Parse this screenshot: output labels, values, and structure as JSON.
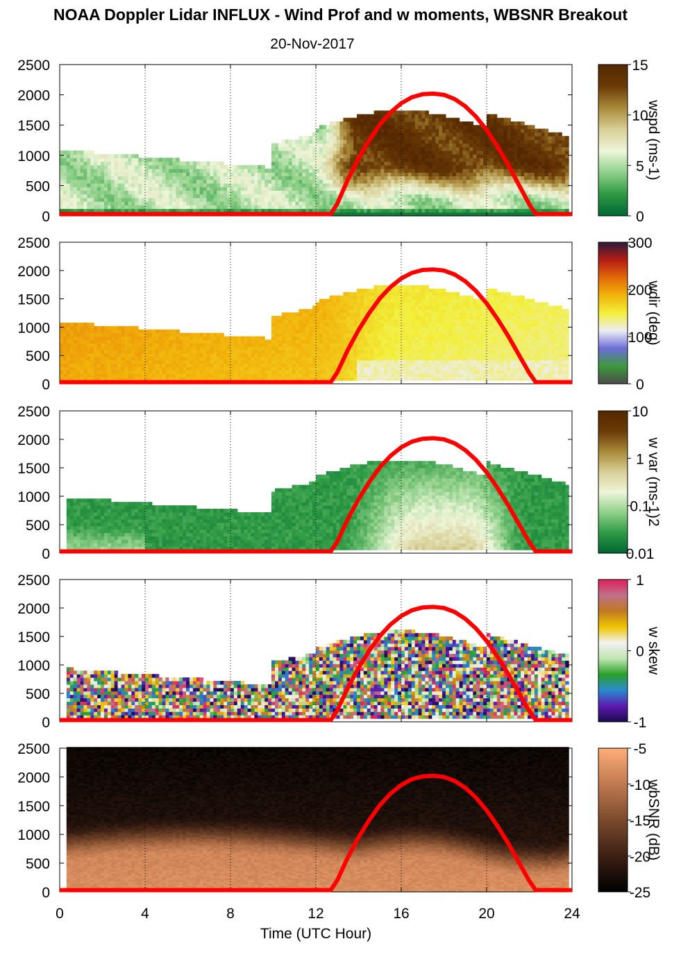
{
  "title": "NOAA Doppler Lidar INFLUX - Wind Prof and w moments, WBSNR Breakout",
  "subtitle": "20-Nov-2017",
  "xlabel": "Time (UTC Hour)",
  "chart_data": [
    {
      "type": "heatmap",
      "name": "wspd",
      "colorbar_label": "wspd (ms-1)",
      "colorbar_ticks": [
        "0",
        "5",
        "10",
        "15"
      ],
      "colormap": [
        "#006633",
        "#2e9a44",
        "#8fd08a",
        "#eef6da",
        "#d8cf96",
        "#a98a3a",
        "#6a3a06",
        "#542700"
      ],
      "xlim": [
        0,
        24
      ],
      "ylim": [
        0,
        2500
      ],
      "xticks": [
        0,
        4,
        8,
        12,
        16,
        20,
        24
      ],
      "yticks": [
        0,
        500,
        1000,
        1500,
        2000,
        2500
      ]
    },
    {
      "type": "heatmap",
      "name": "wdir",
      "colorbar_label": "wdir (deg)",
      "colorbar_ticks": [
        "0",
        "100",
        "200",
        "300"
      ],
      "colormap": [
        "#4a4a4a",
        "#3c9a3c",
        "#6d6dd9",
        "#ededf5",
        "#f2ef3a",
        "#f2b40a",
        "#e26a0a",
        "#b41c14",
        "#2a1a3c"
      ],
      "xlim": [
        0,
        24
      ],
      "ylim": [
        0,
        2500
      ],
      "xticks": [
        0,
        4,
        8,
        12,
        16,
        20,
        24
      ],
      "yticks": [
        0,
        500,
        1000,
        1500,
        2000,
        2500
      ]
    },
    {
      "type": "heatmap",
      "name": "w var",
      "colorbar_label": "w var (ms-1)2",
      "colorbar_ticks": [
        "0.01",
        "0.1",
        "1",
        "10"
      ],
      "colormap": [
        "#006633",
        "#2e9a44",
        "#8fd08a",
        "#eef6da",
        "#d8cf96",
        "#a98a3a",
        "#6a3a06",
        "#542700"
      ],
      "xlim": [
        0,
        24
      ],
      "ylim": [
        0,
        2500
      ],
      "xticks": [
        0,
        4,
        8,
        12,
        16,
        20,
        24
      ],
      "yticks": [
        0,
        500,
        1000,
        1500,
        2000,
        2500
      ]
    },
    {
      "type": "heatmap",
      "name": "w skew",
      "colorbar_label": "w skew",
      "colorbar_ticks": [
        "-1",
        "0",
        "1"
      ],
      "colormap": [
        "#1a0a50",
        "#5c1ab0",
        "#2a8ad0",
        "#2aa02a",
        "#bfe6b0",
        "#f2f2f2",
        "#f0c400",
        "#c07a20",
        "#c0708a",
        "#e0205a"
      ],
      "xlim": [
        0,
        24
      ],
      "ylim": [
        0,
        2500
      ],
      "xticks": [
        0,
        4,
        8,
        12,
        16,
        20,
        24
      ],
      "yticks": [
        0,
        500,
        1000,
        1500,
        2000,
        2500
      ]
    },
    {
      "type": "heatmap",
      "name": "wbSNR",
      "colorbar_label": "wbSNR (dB)",
      "colorbar_ticks": [
        "-25",
        "-20",
        "-15",
        "-10",
        "-5"
      ],
      "colormap": [
        "#000000",
        "#3c2014",
        "#7a4a2c",
        "#c07a50",
        "#ffae78"
      ],
      "xlim": [
        0,
        24
      ],
      "ylim": [
        0,
        2500
      ],
      "xticks": [
        0,
        4,
        8,
        12,
        16,
        20,
        24
      ],
      "yticks": [
        0,
        500,
        1000,
        1500,
        2000,
        2500
      ]
    }
  ],
  "overlay_line": {
    "color": "#ff0000",
    "x": [
      0,
      12.7,
      13.0,
      13.5,
      14.0,
      14.5,
      15.0,
      15.5,
      16.0,
      16.5,
      17.0,
      17.5,
      18.0,
      18.5,
      19.0,
      19.5,
      20.0,
      20.5,
      21.0,
      21.5,
      22.0,
      22.3,
      24
    ],
    "y": [
      30,
      30,
      200,
      600,
      950,
      1250,
      1510,
      1710,
      1860,
      1960,
      2010,
      2020,
      2000,
      1930,
      1810,
      1640,
      1420,
      1150,
      850,
      520,
      190,
      30,
      30
    ]
  }
}
